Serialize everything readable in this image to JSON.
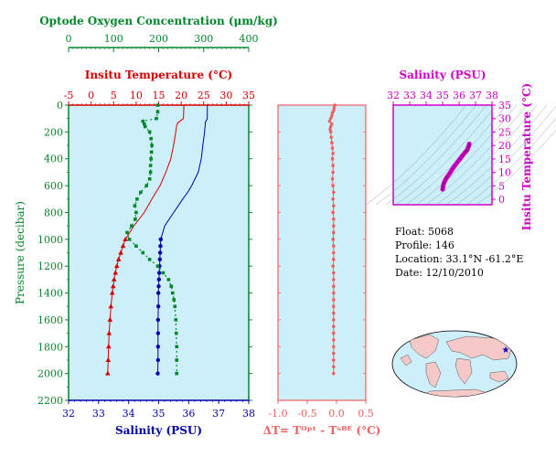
{
  "info": {
    "float": "Float:  5068",
    "profile": "Profile:  146",
    "location": "Location:  33.1°N  -61.2°E",
    "date": "Date:  12/10/2010"
  },
  "colors": {
    "oxygen": "#00882b",
    "temperature": "#d40000",
    "salinity": "#0000a8",
    "dt": "#f06060",
    "ts": "#d000c8",
    "bg": "#cdeffa"
  },
  "chart_data": [
    {
      "type": "line",
      "title": "",
      "ylabel": "Pressure (decibar)",
      "ylim": [
        2200,
        0
      ],
      "yticks": [
        "0",
        "200",
        "400",
        "600",
        "800",
        "1000",
        "1200",
        "1400",
        "1600",
        "1800",
        "2000",
        "2200"
      ],
      "axes": {
        "oxygen": {
          "label": "Optode Oxygen Concentration (μm/kg)",
          "lim": [
            0,
            400
          ],
          "ticks": [
            "0",
            "100",
            "200",
            "300",
            "400"
          ]
        },
        "temperature": {
          "label": "Insitu Temperature (°C)",
          "lim": [
            -5,
            35
          ],
          "ticks": [
            "-5",
            "0",
            "5",
            "10",
            "15",
            "20",
            "25",
            "30",
            "35"
          ]
        },
        "salinity": {
          "label": "Salinity (PSU)",
          "lim": [
            32,
            38
          ],
          "ticks": [
            "32",
            "33",
            "34",
            "35",
            "36",
            "37",
            "38"
          ]
        }
      },
      "series": [
        {
          "key": "temperature",
          "continuous": {
            "p": [
              0,
              100,
              130,
              150,
              200,
              300,
              400,
              500,
              600,
              700,
              800,
              900,
              1000
            ],
            "v": [
              20.6,
              20.5,
              19.3,
              19.0,
              18.8,
              18.3,
              17.7,
              16.6,
              15.3,
              13.5,
              11.8,
              9.5,
              7.6
            ]
          },
          "points": {
            "p": [
              1000,
              1050,
              1100,
              1150,
              1200,
              1250,
              1300,
              1350,
              1400,
              1500,
              1600,
              1700,
              1800,
              1900,
              2000
            ],
            "v": [
              7.6,
              7.1,
              6.6,
              6.1,
              5.7,
              5.4,
              5.1,
              4.9,
              4.7,
              4.4,
              4.2,
              4.0,
              3.9,
              3.8,
              3.7
            ]
          }
        },
        {
          "key": "salinity",
          "continuous": {
            "p": [
              0,
              100,
              130,
              150,
              200,
              300,
              400,
              500,
              600,
              650,
              700,
              800,
              900,
              1000
            ],
            "v": [
              36.62,
              36.62,
              36.55,
              36.55,
              36.53,
              36.47,
              36.42,
              36.32,
              36.1,
              35.97,
              35.8,
              35.5,
              35.2,
              35.07
            ]
          },
          "points": {
            "p": [
              1000,
              1050,
              1100,
              1150,
              1200,
              1250,
              1300,
              1350,
              1400,
              1500,
              1600,
              1700,
              1800,
              1900,
              2000
            ],
            "v": [
              35.07,
              35.06,
              35.05,
              35.04,
              35.03,
              35.02,
              35.01,
              35.0,
              34.99,
              34.99,
              34.98,
              34.98,
              34.98,
              34.98,
              34.97
            ]
          }
        },
        {
          "key": "oxygen",
          "points": {
            "p": [
              0,
              50,
              100,
              120,
              140,
              160,
              200,
              250,
              300,
              350,
              400,
              450,
              500,
              550,
              600,
              650,
              700,
              750,
              800,
              850,
              900,
              950,
              1000,
              1050,
              1100,
              1150,
              1200,
              1250,
              1300,
              1350,
              1400,
              1450,
              1500,
              1600,
              1700,
              1800,
              1900,
              2000
            ],
            "v": [
              198,
              198,
              195,
              165,
              168,
              170,
              180,
              183,
              185,
              184,
              183,
              182,
              182,
              180,
              173,
              160,
              152,
              147,
              150,
              148,
              140,
              130,
              135,
              150,
              165,
              180,
              198,
              210,
              222,
              228,
              231,
              234,
              236,
              238,
              239,
              240,
              240,
              240
            ]
          }
        }
      ]
    },
    {
      "type": "scatter",
      "title": "",
      "xlabel": "ΔT= Tᴼᵖᵗ - Tˢᴮᴱ (°C)",
      "xlim": [
        -1.0,
        0.5
      ],
      "xticks": [
        "-1.0",
        "-0.5",
        "0.0",
        "0.5"
      ],
      "ylim": [
        2200,
        0
      ],
      "series": [
        {
          "key": "dt",
          "p": [
            0,
            20,
            40,
            60,
            80,
            100,
            120,
            140,
            160,
            180,
            200,
            240,
            280,
            320,
            360,
            400,
            450,
            500,
            550,
            600,
            650,
            700,
            750,
            800,
            850,
            900,
            950,
            1000,
            1050,
            1100,
            1150,
            1200,
            1250,
            1300,
            1350,
            1400,
            1450,
            1500,
            1550,
            1600,
            1650,
            1700,
            1750,
            1800,
            1850,
            1900,
            1950,
            2000
          ],
          "v": [
            -0.03,
            -0.04,
            -0.05,
            -0.07,
            -0.08,
            -0.1,
            -0.12,
            -0.08,
            -0.1,
            -0.11,
            -0.1,
            -0.09,
            -0.08,
            -0.07,
            -0.06,
            -0.07,
            -0.06,
            -0.06,
            -0.07,
            -0.06,
            -0.05,
            -0.06,
            -0.05,
            -0.06,
            -0.05,
            -0.05,
            -0.05,
            -0.06,
            -0.05,
            -0.05,
            -0.05,
            -0.06,
            -0.05,
            -0.05,
            -0.05,
            -0.05,
            -0.05,
            -0.05,
            -0.05,
            -0.05,
            -0.05,
            -0.05,
            -0.05,
            -0.05,
            -0.05,
            -0.05,
            -0.05,
            -0.05
          ]
        }
      ]
    },
    {
      "type": "scatter",
      "title": "",
      "xlabel": "Salinity (PSU)",
      "ylabel": "Insitu Temperature (°C)",
      "xlim": [
        32,
        38
      ],
      "ylim": [
        -2,
        35
      ],
      "xticks": [
        "32",
        "33",
        "34",
        "35",
        "36",
        "37",
        "38"
      ],
      "yticks": [
        "0",
        "5",
        "10",
        "15",
        "20",
        "25",
        "30",
        "35"
      ],
      "series": [
        {
          "key": "ts",
          "s": [
            35.0,
            35.02,
            35.05,
            35.1,
            35.2,
            35.3,
            35.45,
            35.6,
            35.75,
            35.9,
            36.05,
            36.2,
            36.35,
            36.45,
            36.52,
            36.55,
            36.6,
            36.62
          ],
          "t": [
            3.7,
            4.5,
            5.4,
            6.3,
            7.6,
            8.5,
            9.8,
            11.3,
            12.6,
            13.8,
            15.0,
            16.2,
            17.3,
            18.0,
            18.7,
            19.3,
            20.0,
            20.6
          ]
        }
      ]
    }
  ]
}
